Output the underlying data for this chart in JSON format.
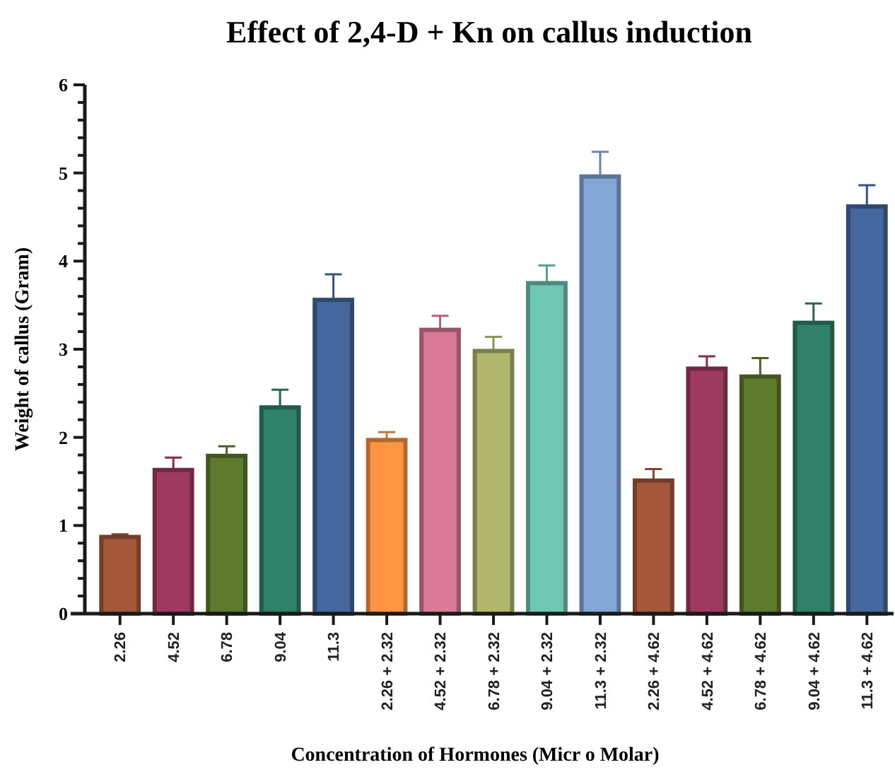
{
  "chart_data": {
    "type": "bar",
    "title": "Effect of 2,4-D + Kn on callus induction",
    "xlabel": "Concentration of Hormones (Micr o Molar)",
    "ylabel": "Weight of callus (Gram)",
    "categories": [
      "2.26",
      "4.52",
      "6.78",
      "9.04",
      "11.3",
      "2.26 + 2.32",
      "4.52 + 2.32",
      "6.78 + 2.32",
      "9.04 + 2.32",
      "11.3 + 2.32",
      "2.26 + 4.62",
      "4.52 + 4.62",
      "6.78 + 4.62",
      "9.04 + 4.62",
      "11.3 + 4.62"
    ],
    "values": [
      0.87,
      1.63,
      1.79,
      2.34,
      3.56,
      1.97,
      3.22,
      2.98,
      3.75,
      4.96,
      1.51,
      2.78,
      2.69,
      3.3,
      4.62
    ],
    "errors": [
      0.03,
      0.14,
      0.11,
      0.2,
      0.29,
      0.09,
      0.16,
      0.16,
      0.2,
      0.28,
      0.13,
      0.14,
      0.21,
      0.22,
      0.24
    ],
    "colors": [
      "#a5573c",
      "#9e3a5e",
      "#5e7a2c",
      "#2e8068",
      "#44679e",
      "#ff9442",
      "#d97a96",
      "#b0b66c",
      "#6ec8b2",
      "#84a6d6",
      "#a5573c",
      "#9e3a5e",
      "#5e7a2c",
      "#2e8068",
      "#44679e"
    ],
    "ylim": [
      0,
      6
    ],
    "yticks": [
      0,
      {
        "value": 0.2,
        "label": null
      },
      {
        "value": 0.4,
        "label": null
      },
      {
        "value": 0.6,
        "label": null
      },
      {
        "value": 0.8,
        "label": null
      },
      1,
      {
        "value": 1.2,
        "label": null
      },
      {
        "value": 1.4,
        "label": null
      },
      {
        "value": 1.6,
        "label": null
      },
      {
        "value": 1.8,
        "label": null
      },
      2,
      {
        "value": 2.2,
        "label": null
      },
      {
        "value": 2.4,
        "label": null
      },
      {
        "value": 2.6,
        "label": null
      },
      {
        "value": 2.8,
        "label": null
      },
      3,
      {
        "value": 3.2,
        "label": null
      },
      {
        "value": 3.4,
        "label": null
      },
      {
        "value": 3.6,
        "label": null
      },
      {
        "value": 3.8,
        "label": null
      },
      4,
      {
        "value": 4.2,
        "label": null
      },
      {
        "value": 4.4,
        "label": null
      },
      {
        "value": 4.6,
        "label": null
      },
      {
        "value": 4.8,
        "label": null
      },
      5,
      {
        "value": 5.2,
        "label": null
      },
      {
        "value": 5.4,
        "label": null
      },
      {
        "value": 5.6,
        "label": null
      },
      {
        "value": 5.8,
        "label": null
      },
      6
    ],
    "grid": false
  }
}
